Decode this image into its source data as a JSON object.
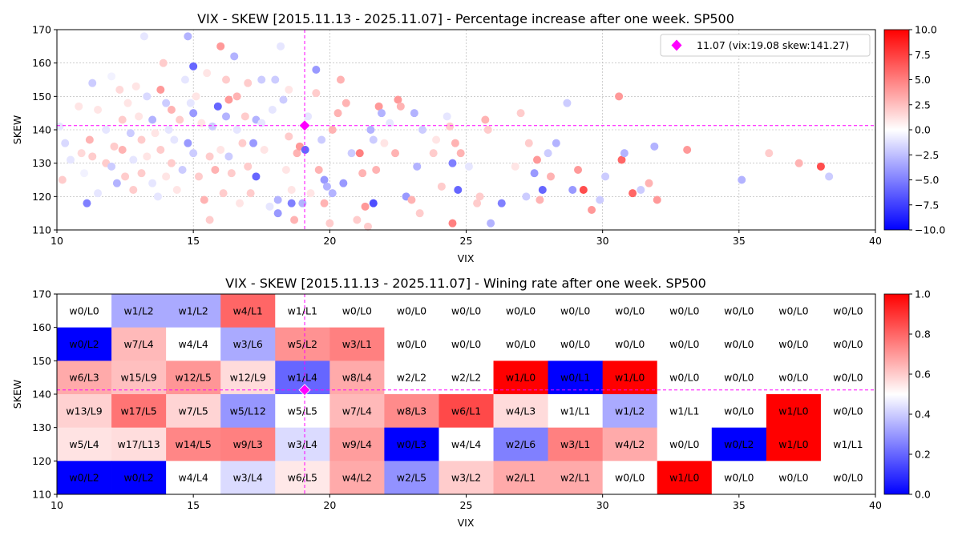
{
  "chart_data": [
    {
      "type": "scatter",
      "title": "VIX - SKEW [2015.11.13 - 2025.11.07]  - Percentage increase after one week. SP500",
      "xlabel": "VIX",
      "ylabel": "SKEW",
      "xlim": [
        10,
        40
      ],
      "ylim": [
        110,
        170
      ],
      "xticks": [
        "10",
        "15",
        "20",
        "25",
        "30",
        "35",
        "40"
      ],
      "yticks": [
        "110",
        "120",
        "130",
        "140",
        "150",
        "160",
        "170"
      ],
      "grid": true,
      "colormap": "bwr",
      "color_range": [
        -10,
        10
      ],
      "colorbar_ticks": [
        "10.0",
        "7.5",
        "5.0",
        "2.5",
        "0.0",
        "−2.5",
        "−5.0",
        "−7.5",
        "−10.0"
      ],
      "current": {
        "vix": 19.08,
        "skew": 141.27,
        "color": "#ff00ff"
      },
      "legend": {
        "label": "11.07 (vix:19.08 skew:141.27)",
        "position": "top-right"
      },
      "points": [
        [
          10.1,
          141,
          -1
        ],
        [
          10.2,
          125,
          2
        ],
        [
          10.3,
          136,
          -1.5
        ],
        [
          10.5,
          131,
          -1
        ],
        [
          10.8,
          147,
          1
        ],
        [
          10.9,
          133,
          1.5
        ],
        [
          11.0,
          127,
          -0.5
        ],
        [
          11.1,
          118,
          -5
        ],
        [
          11.2,
          137,
          3
        ],
        [
          11.3,
          132,
          2
        ],
        [
          11.3,
          154,
          -2
        ],
        [
          11.5,
          146,
          1
        ],
        [
          11.5,
          121,
          -1
        ],
        [
          11.8,
          140,
          -1
        ],
        [
          11.8,
          130,
          2
        ],
        [
          12.0,
          156,
          -0.5
        ],
        [
          12.0,
          129,
          -2
        ],
        [
          12.1,
          135,
          2
        ],
        [
          12.2,
          124,
          -3
        ],
        [
          12.3,
          152,
          1.5
        ],
        [
          12.4,
          143,
          2
        ],
        [
          12.4,
          134,
          3
        ],
        [
          12.5,
          126,
          2
        ],
        [
          12.6,
          148,
          1
        ],
        [
          12.7,
          139,
          -2
        ],
        [
          12.8,
          131,
          -1
        ],
        [
          12.8,
          122,
          2
        ],
        [
          12.9,
          153,
          1
        ],
        [
          13.0,
          144,
          1
        ],
        [
          13.1,
          137,
          2
        ],
        [
          13.1,
          127,
          2
        ],
        [
          13.2,
          168,
          -1
        ],
        [
          13.3,
          150,
          -1.5
        ],
        [
          13.3,
          132,
          1
        ],
        [
          13.5,
          143,
          -3
        ],
        [
          13.5,
          124,
          -1
        ],
        [
          13.6,
          139,
          1
        ],
        [
          13.7,
          120,
          -1
        ],
        [
          13.8,
          152,
          4
        ],
        [
          13.8,
          134,
          2
        ],
        [
          13.9,
          160,
          2
        ],
        [
          14.0,
          148,
          -2
        ],
        [
          14.0,
          126,
          1
        ],
        [
          14.1,
          140,
          -1
        ],
        [
          14.2,
          130,
          2
        ],
        [
          14.2,
          146,
          3
        ],
        [
          14.3,
          137,
          -1
        ],
        [
          14.4,
          122,
          1
        ],
        [
          14.5,
          143,
          2
        ],
        [
          14.6,
          128,
          -2
        ],
        [
          14.7,
          155,
          -1
        ],
        [
          14.8,
          136,
          -4
        ],
        [
          14.8,
          168,
          -3
        ],
        [
          14.9,
          148,
          -1
        ],
        [
          15.0,
          133,
          -2
        ],
        [
          15.0,
          145,
          -4
        ],
        [
          15.0,
          159,
          -6
        ],
        [
          15.1,
          150,
          1
        ],
        [
          15.2,
          126,
          2
        ],
        [
          15.3,
          142,
          1
        ],
        [
          15.4,
          119,
          3
        ],
        [
          15.5,
          157,
          1
        ],
        [
          15.6,
          132,
          2
        ],
        [
          15.6,
          113,
          2
        ],
        [
          15.7,
          141,
          -2
        ],
        [
          15.8,
          128,
          3
        ],
        [
          15.9,
          147,
          -6
        ],
        [
          16.0,
          165,
          4
        ],
        [
          16.0,
          134,
          1
        ],
        [
          16.1,
          121,
          2
        ],
        [
          16.2,
          155,
          2
        ],
        [
          16.2,
          144,
          -3
        ],
        [
          16.3,
          149,
          4
        ],
        [
          16.3,
          132,
          -2
        ],
        [
          16.4,
          127,
          2
        ],
        [
          16.5,
          162,
          -3
        ],
        [
          16.6,
          140,
          -1
        ],
        [
          16.6,
          150,
          3
        ],
        [
          16.7,
          118,
          1
        ],
        [
          16.8,
          136,
          2
        ],
        [
          16.9,
          144,
          2
        ],
        [
          17.0,
          154,
          2
        ],
        [
          17.0,
          129,
          2
        ],
        [
          17.1,
          121,
          2
        ],
        [
          17.2,
          136,
          -4
        ],
        [
          17.3,
          126,
          -6
        ],
        [
          17.3,
          143,
          -3
        ],
        [
          17.5,
          142,
          -1
        ],
        [
          17.5,
          155,
          -2
        ],
        [
          17.6,
          134,
          1
        ],
        [
          17.8,
          117,
          -1
        ],
        [
          17.9,
          146,
          -1
        ],
        [
          18.0,
          155,
          -2
        ],
        [
          18.1,
          119,
          -3
        ],
        [
          18.1,
          115,
          -4
        ],
        [
          18.2,
          165,
          -1
        ],
        [
          18.3,
          149,
          -2
        ],
        [
          18.4,
          128,
          1
        ],
        [
          18.5,
          138,
          2
        ],
        [
          18.5,
          152,
          1
        ],
        [
          18.6,
          118,
          -5
        ],
        [
          18.6,
          122,
          1
        ],
        [
          18.7,
          113,
          3
        ],
        [
          18.8,
          133,
          3
        ],
        [
          18.9,
          135,
          4
        ],
        [
          19.0,
          118,
          -3
        ],
        [
          19.1,
          134,
          -6
        ],
        [
          19.2,
          144,
          -1
        ],
        [
          19.3,
          121,
          1
        ],
        [
          19.5,
          158,
          -4
        ],
        [
          19.5,
          151,
          2
        ],
        [
          19.6,
          128,
          3
        ],
        [
          19.7,
          137,
          -2
        ],
        [
          19.8,
          125,
          -4
        ],
        [
          19.8,
          118,
          3
        ],
        [
          19.9,
          123,
          -3
        ],
        [
          20.0,
          112,
          2
        ],
        [
          20.1,
          140,
          3
        ],
        [
          20.1,
          121,
          -3
        ],
        [
          20.3,
          145,
          3
        ],
        [
          20.4,
          155,
          3
        ],
        [
          20.5,
          124,
          -4
        ],
        [
          20.6,
          148,
          3
        ],
        [
          20.8,
          133,
          -2
        ],
        [
          21.0,
          113,
          2
        ],
        [
          21.1,
          133,
          5
        ],
        [
          21.2,
          127,
          3
        ],
        [
          21.3,
          117,
          4
        ],
        [
          21.4,
          111,
          2
        ],
        [
          21.5,
          140,
          -3
        ],
        [
          21.6,
          118,
          -7
        ],
        [
          21.6,
          137,
          -2
        ],
        [
          21.7,
          128,
          3
        ],
        [
          21.8,
          147,
          4
        ],
        [
          21.9,
          145,
          -3
        ],
        [
          22.0,
          136,
          1
        ],
        [
          22.2,
          142,
          -1
        ],
        [
          22.4,
          133,
          3
        ],
        [
          22.5,
          149,
          4
        ],
        [
          22.6,
          147,
          3
        ],
        [
          22.8,
          120,
          -4
        ],
        [
          23.0,
          119,
          3
        ],
        [
          23.1,
          145,
          -3
        ],
        [
          23.2,
          129,
          -3
        ],
        [
          23.3,
          115,
          2
        ],
        [
          23.4,
          140,
          -2
        ],
        [
          23.8,
          133,
          2
        ],
        [
          23.9,
          137,
          1
        ],
        [
          24.1,
          123,
          2
        ],
        [
          24.3,
          144,
          -1
        ],
        [
          24.4,
          141,
          2
        ],
        [
          24.5,
          130,
          -5
        ],
        [
          24.5,
          112,
          5
        ],
        [
          24.6,
          136,
          3
        ],
        [
          24.7,
          122,
          -6
        ],
        [
          24.8,
          133,
          3
        ],
        [
          25.1,
          129,
          -1
        ],
        [
          25.4,
          118,
          2
        ],
        [
          25.5,
          120,
          2
        ],
        [
          25.7,
          143,
          3
        ],
        [
          25.8,
          140,
          2
        ],
        [
          25.9,
          112,
          -3
        ],
        [
          26.3,
          118,
          -5
        ],
        [
          26.8,
          129,
          1
        ],
        [
          27.0,
          145,
          2
        ],
        [
          27.2,
          120,
          -2
        ],
        [
          27.3,
          136,
          2
        ],
        [
          27.5,
          127,
          -4
        ],
        [
          27.6,
          131,
          4
        ],
        [
          27.7,
          119,
          3
        ],
        [
          27.8,
          122,
          -6
        ],
        [
          28.0,
          133,
          -2
        ],
        [
          28.1,
          126,
          3
        ],
        [
          28.3,
          136,
          -3
        ],
        [
          28.7,
          148,
          -2
        ],
        [
          28.9,
          122,
          -4
        ],
        [
          29.1,
          128,
          4
        ],
        [
          29.3,
          122,
          7
        ],
        [
          29.6,
          116,
          4
        ],
        [
          29.9,
          119,
          -2
        ],
        [
          30.1,
          126,
          -2
        ],
        [
          30.6,
          150,
          4
        ],
        [
          30.7,
          131,
          6
        ],
        [
          30.8,
          133,
          -3
        ],
        [
          31.1,
          121,
          6
        ],
        [
          31.4,
          122,
          -2
        ],
        [
          31.7,
          124,
          3
        ],
        [
          31.9,
          135,
          -3
        ],
        [
          32.0,
          119,
          4
        ],
        [
          33.1,
          134,
          4
        ],
        [
          35.1,
          125,
          -3
        ],
        [
          36.1,
          133,
          2
        ],
        [
          37.2,
          130,
          3
        ],
        [
          38.0,
          129,
          7
        ],
        [
          38.3,
          126,
          -2
        ]
      ]
    },
    {
      "type": "heatmap",
      "title": "VIX - SKEW [2015.11.13 - 2025.11.07]  - Wining rate after one week. SP500",
      "xlabel": "VIX",
      "ylabel": "SKEW",
      "xlim": [
        10,
        40
      ],
      "ylim": [
        110,
        170
      ],
      "xticks": [
        "10",
        "15",
        "20",
        "25",
        "30",
        "35",
        "40"
      ],
      "yticks": [
        "110",
        "120",
        "130",
        "140",
        "150",
        "160",
        "170"
      ],
      "colormap": "bwr",
      "color_range": [
        0,
        1
      ],
      "colorbar_ticks": [
        "1.0",
        "0.8",
        "0.6",
        "0.4",
        "0.2",
        "0.0"
      ],
      "current": {
        "vix": 19.08,
        "skew": 141.27,
        "color": "#ff00ff"
      },
      "x_bin_edges": [
        10,
        12,
        14,
        16,
        18,
        20,
        22,
        24,
        26,
        28,
        30,
        32,
        34,
        36,
        38,
        40
      ],
      "y_bin_edges": [
        110,
        120,
        130,
        140,
        150,
        160,
        170
      ],
      "rows_top_to_bottom": [
        [
          "w0/L0",
          "w1/L2",
          "w1/L2",
          "w4/L1",
          "w1/L1",
          "w0/L0",
          "w0/L0",
          "w0/L0",
          "w0/L0",
          "w0/L0",
          "w0/L0",
          "w0/L0",
          "w0/L0",
          "w0/L0",
          "w0/L0"
        ],
        [
          "w0/L2",
          "w7/L4",
          "w4/L4",
          "w3/L6",
          "w5/L2",
          "w3/L1",
          "w0/L0",
          "w0/L0",
          "w0/L0",
          "w0/L0",
          "w0/L0",
          "w0/L0",
          "w0/L0",
          "w0/L0",
          "w0/L0"
        ],
        [
          "w6/L3",
          "w15/L9",
          "w12/L5",
          "w12/L9",
          "w1/L4",
          "w8/L4",
          "w2/L2",
          "w2/L2",
          "w1/L0",
          "w0/L1",
          "w1/L0",
          "w0/L0",
          "w0/L0",
          "w0/L0",
          "w0/L0"
        ],
        [
          "w13/L9",
          "w17/L5",
          "w7/L5",
          "w5/L12",
          "w5/L5",
          "w7/L4",
          "w8/L3",
          "w6/L1",
          "w4/L3",
          "w1/L1",
          "w1/L2",
          "w1/L1",
          "w0/L0",
          "w1/L0",
          "w0/L0"
        ],
        [
          "w5/L4",
          "w17/L13",
          "w14/L5",
          "w9/L3",
          "w3/L4",
          "w9/L4",
          "w0/L3",
          "w4/L4",
          "w2/L6",
          "w3/L1",
          "w4/L2",
          "w0/L0",
          "w0/L2",
          "w1/L0",
          "w1/L1"
        ],
        [
          "w0/L2",
          "w0/L2",
          "w4/L4",
          "w3/L4",
          "w6/L5",
          "w4/L2",
          "w2/L5",
          "w3/L2",
          "w2/L1",
          "w2/L1",
          "w0/L0",
          "w1/L0",
          "w0/L0",
          "w0/L0",
          "w0/L0"
        ]
      ]
    }
  ]
}
